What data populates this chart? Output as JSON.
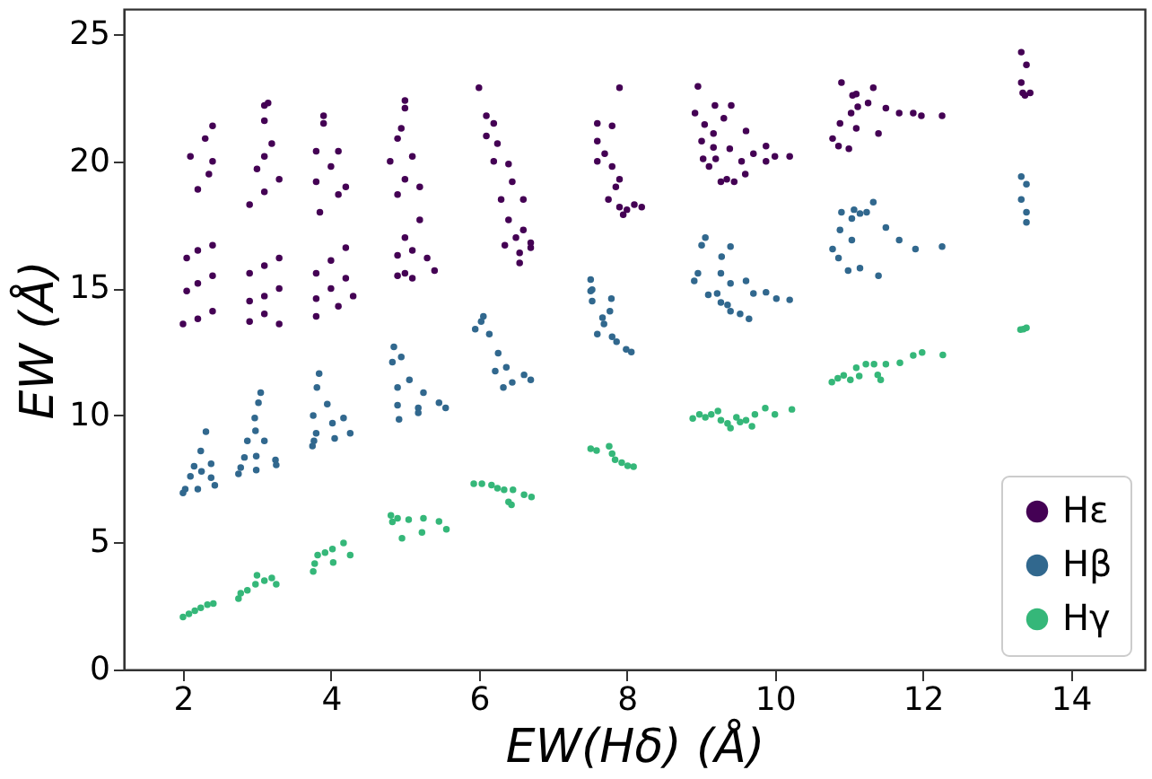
{
  "chart_data": {
    "type": "scatter",
    "xlabel": "EW(Hδ) (Å)",
    "ylabel": "EW (Å)",
    "xlim": [
      1.2,
      15.0
    ],
    "ylim": [
      0,
      26
    ],
    "xticks": [
      2,
      4,
      6,
      8,
      10,
      12,
      14
    ],
    "yticks": [
      0,
      5,
      10,
      15,
      20,
      25
    ],
    "grid": false,
    "legend": "bottom right",
    "marker": "circle",
    "series": [
      {
        "name": "Hε",
        "color": "#440154",
        "x": [
          2.0,
          2.2,
          2.4,
          2.05,
          2.2,
          2.4,
          2.05,
          2.2,
          2.4,
          2.2,
          2.35,
          2.1,
          2.4,
          2.3,
          2.4,
          2.9,
          3.1,
          3.3,
          2.9,
          3.1,
          3.3,
          2.9,
          3.1,
          3.3,
          2.9,
          3.1,
          3.0,
          3.3,
          3.1,
          3.2,
          3.1,
          3.1,
          3.15,
          3.8,
          4.1,
          3.8,
          4.0,
          4.3,
          3.8,
          4.0,
          4.2,
          4.2,
          3.85,
          4.1,
          3.8,
          4.2,
          4.0,
          3.8,
          4.1,
          3.9,
          3.9,
          4.9,
          5.0,
          5.1,
          4.9,
          5.1,
          5.3,
          5.4,
          5.0,
          5.2,
          4.9,
          5.2,
          5.0,
          4.8,
          5.1,
          4.9,
          4.95,
          5.0,
          5.0,
          6.0,
          6.1,
          6.2,
          6.1,
          6.25,
          6.2,
          6.4,
          6.45,
          6.3,
          6.6,
          6.4,
          6.6,
          6.35,
          6.7,
          6.55,
          6.7,
          6.5,
          6.55,
          7.9,
          7.6,
          7.8,
          7.6,
          7.7,
          7.6,
          7.8,
          7.9,
          7.85,
          7.75,
          7.9,
          8.0,
          8.1,
          8.2,
          7.95,
          8.96,
          9.19,
          9.41,
          8.92,
          9.05,
          9.31,
          9.01,
          9.17,
          9.61,
          9.17,
          9.39,
          9.03,
          9.2,
          9.11,
          9.55,
          9.71,
          9.6,
          9.88,
          9.88,
          10.0,
          10.2,
          9.27,
          9.35,
          9.45,
          10.9,
          11.05,
          11.1,
          11.33,
          11.26,
          11.12,
          11.5,
          11.03,
          11.68,
          11.87,
          11.98,
          12.26,
          10.88,
          11.1,
          11.4,
          10.78,
          10.86,
          11.0,
          13.33,
          13.4,
          13.33,
          13.35,
          13.45,
          13.38
        ],
        "values": [
          13.6,
          13.8,
          14.1,
          14.9,
          15.2,
          15.5,
          16.2,
          16.5,
          16.7,
          18.9,
          19.5,
          20.2,
          20.0,
          20.9,
          21.4,
          13.7,
          14.0,
          13.6,
          14.5,
          14.7,
          15.0,
          15.6,
          15.9,
          16.2,
          18.3,
          18.8,
          19.7,
          19.3,
          20.2,
          20.7,
          21.6,
          22.2,
          22.3,
          13.9,
          14.3,
          14.6,
          15.0,
          14.7,
          15.6,
          16.1,
          16.6,
          15.4,
          18.0,
          18.7,
          19.2,
          19.0,
          19.8,
          20.4,
          20.4,
          21.5,
          21.8,
          15.5,
          15.6,
          15.4,
          16.3,
          16.5,
          16.2,
          15.7,
          17.0,
          17.7,
          18.7,
          19.0,
          19.3,
          20.0,
          20.2,
          20.9,
          21.3,
          22.1,
          22.4,
          22.9,
          21.8,
          21.5,
          21.0,
          20.7,
          20.0,
          19.9,
          19.2,
          18.5,
          18.5,
          17.7,
          17.3,
          16.7,
          16.6,
          16.4,
          16.8,
          17.0,
          16.0,
          22.9,
          21.5,
          21.4,
          20.8,
          20.3,
          20.0,
          19.8,
          19.3,
          19.0,
          18.5,
          18.2,
          18.1,
          18.3,
          18.2,
          17.9,
          22.95,
          22.2,
          22.2,
          21.9,
          21.45,
          21.7,
          20.8,
          21.1,
          21.2,
          20.55,
          20.5,
          20.1,
          20.1,
          19.8,
          20.0,
          20.3,
          19.5,
          20.6,
          20.0,
          20.2,
          20.2,
          19.2,
          19.3,
          19.2,
          23.1,
          22.6,
          22.65,
          22.9,
          22.3,
          22.15,
          22.1,
          21.9,
          21.9,
          21.9,
          21.8,
          21.8,
          21.5,
          21.3,
          21.1,
          20.9,
          20.6,
          20.5,
          24.3,
          23.8,
          23.1,
          22.7,
          22.7,
          22.6
        ]
      },
      {
        "name": "Hβ",
        "color": "#31688e",
        "x": [
          2.0,
          2.03,
          2.1,
          2.2,
          2.25,
          2.24,
          2.38,
          2.38,
          2.43,
          2.31,
          2.15,
          2.75,
          2.78,
          2.87,
          2.83,
          2.98,
          2.97,
          3.02,
          3.05,
          2.99,
          2.99,
          3.1,
          3.25,
          3.26,
          3.75,
          3.77,
          3.8,
          3.76,
          3.81,
          3.84,
          3.95,
          4.02,
          4.05,
          4.17,
          4.26,
          4.85,
          4.95,
          4.83,
          5.06,
          4.9,
          5.25,
          4.9,
          5.18,
          4.92,
          5.18,
          5.46,
          5.55,
          6.06,
          6.03,
          5.95,
          6.14,
          6.26,
          6.22,
          6.37,
          6.61,
          6.7,
          6.33,
          6.45,
          7.51,
          7.53,
          7.79,
          7.67,
          7.69,
          7.6,
          7.8,
          7.86,
          7.99,
          8.06,
          7.51,
          7.53,
          7.77,
          9.06,
          9.01,
          9.4,
          9.28,
          8.96,
          9.27,
          8.91,
          9.4,
          9.61,
          9.1,
          9.22,
          9.27,
          9.36,
          9.4,
          9.53,
          9.65,
          9.71,
          9.88,
          10.02,
          10.2,
          10.9,
          11.07,
          11.15,
          11.24,
          11.33,
          11.04,
          10.88,
          11.5,
          11.04,
          11.68,
          11.9,
          12.26,
          10.78,
          10.86,
          10.99,
          11.15,
          11.4,
          13.33,
          13.4,
          13.33,
          13.4,
          13.4
        ],
        "values": [
          6.95,
          7.1,
          7.6,
          7.1,
          7.8,
          8.6,
          8.1,
          7.55,
          7.25,
          9.36,
          8.0,
          7.7,
          7.95,
          9.0,
          8.35,
          9.4,
          9.9,
          10.5,
          10.9,
          8.4,
          7.85,
          9.0,
          8.25,
          8.05,
          8.8,
          9.0,
          9.3,
          10.0,
          11.1,
          11.65,
          10.45,
          9.7,
          9.1,
          9.9,
          9.3,
          12.7,
          12.3,
          12.1,
          11.4,
          11.1,
          10.9,
          10.4,
          10.3,
          9.85,
          10.1,
          10.5,
          10.3,
          13.9,
          13.7,
          13.4,
          13.2,
          12.45,
          11.75,
          11.9,
          11.6,
          11.4,
          11.1,
          11.3,
          14.9,
          14.5,
          14.6,
          13.85,
          13.6,
          13.2,
          13.1,
          12.9,
          12.6,
          12.5,
          15.35,
          14.95,
          14.1,
          17.0,
          16.7,
          16.65,
          16.25,
          15.6,
          15.6,
          15.3,
          15.2,
          15.3,
          14.75,
          14.8,
          14.45,
          14.35,
          14.1,
          14.0,
          13.8,
          14.8,
          14.85,
          14.6,
          14.55,
          18.0,
          18.1,
          17.95,
          18.0,
          18.4,
          17.75,
          17.3,
          17.4,
          16.9,
          16.9,
          16.55,
          16.65,
          16.55,
          16.2,
          15.7,
          15.8,
          15.5,
          19.4,
          19.1,
          18.5,
          18.0,
          17.6
        ]
      },
      {
        "name": "Hγ",
        "color": "#35b779",
        "x": [
          2.0,
          2.08,
          2.16,
          2.24,
          2.33,
          2.41,
          2.75,
          2.78,
          2.87,
          2.98,
          3.0,
          3.26,
          3.1,
          3.2,
          3.76,
          3.78,
          3.82,
          3.92,
          4.02,
          4.03,
          4.17,
          4.26,
          4.81,
          4.83,
          4.9,
          5.05,
          4.96,
          5.25,
          5.23,
          5.46,
          5.56,
          5.93,
          6.04,
          6.17,
          6.25,
          6.34,
          6.46,
          6.61,
          6.71,
          6.4,
          6.44,
          7.51,
          7.59,
          7.76,
          7.8,
          7.84,
          7.93,
          8.01,
          8.09,
          8.89,
          8.98,
          9.06,
          9.14,
          9.23,
          9.27,
          9.36,
          9.4,
          9.48,
          9.53,
          9.61,
          9.69,
          9.73,
          9.87,
          10.0,
          10.23,
          10.77,
          10.85,
          10.93,
          11.02,
          11.1,
          11.14,
          11.23,
          11.34,
          11.39,
          11.43,
          11.5,
          11.69,
          11.87,
          11.99,
          12.27,
          13.32,
          13.4,
          13.36
        ],
        "values": [
          2.07,
          2.19,
          2.31,
          2.43,
          2.55,
          2.6,
          2.79,
          3.0,
          3.12,
          3.36,
          3.71,
          3.36,
          3.5,
          3.6,
          3.86,
          4.17,
          4.5,
          4.6,
          4.74,
          4.21,
          4.98,
          4.5,
          6.07,
          5.81,
          5.95,
          5.9,
          5.17,
          5.95,
          5.4,
          5.83,
          5.52,
          7.31,
          7.31,
          7.26,
          7.14,
          7.07,
          7.07,
          6.88,
          6.79,
          6.6,
          6.48,
          8.69,
          8.62,
          8.79,
          8.5,
          8.26,
          8.14,
          8.02,
          7.98,
          9.88,
          10.04,
          9.93,
          10.04,
          10.17,
          9.81,
          9.69,
          9.5,
          9.93,
          9.74,
          9.81,
          9.57,
          10.04,
          10.29,
          10.04,
          10.24,
          11.31,
          11.46,
          11.58,
          11.4,
          11.88,
          11.55,
          12.02,
          12.02,
          11.6,
          11.4,
          12.02,
          12.07,
          12.36,
          12.48,
          12.38,
          13.38,
          13.45,
          13.4
        ]
      }
    ]
  }
}
